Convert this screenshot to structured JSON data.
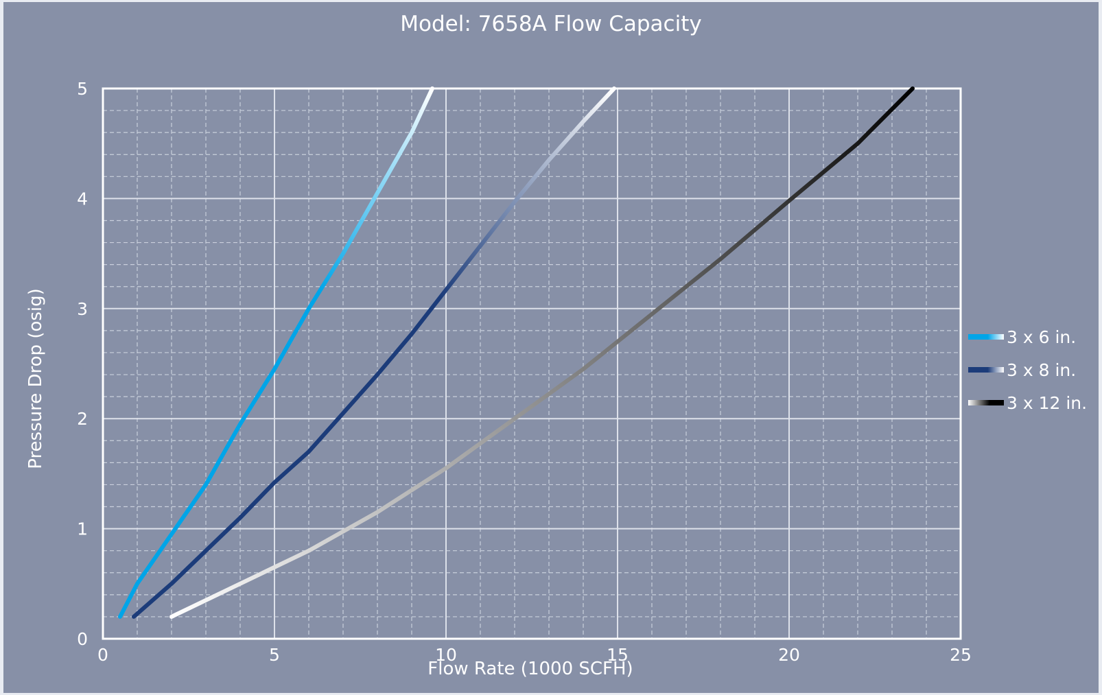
{
  "colors": {
    "background": "#8790a7",
    "frame": "#e9ecf2",
    "plot_border": "#ffffff",
    "grid_major": "#dde1ea",
    "grid_minor": "#c9cfdc"
  },
  "chart_data": {
    "type": "line",
    "title": "Model: 7658A Flow Capacity",
    "xlabel": "Flow Rate (1000 SCFH)",
    "ylabel": "Pressure Drop (osig)",
    "xlim": [
      0,
      25
    ],
    "ylim": [
      0,
      5
    ],
    "x_ticks": [
      "0",
      "5",
      "10",
      "15",
      "20",
      "25"
    ],
    "y_ticks": [
      "0",
      "1",
      "2",
      "3",
      "4",
      "5"
    ],
    "grid": "major and minor (dashed)",
    "legend_position": "right",
    "series": [
      {
        "name": "3 x 6 in.",
        "gradient": [
          "#00a5e8",
          "#ffffff"
        ],
        "points": [
          [
            0.5,
            0.2
          ],
          [
            1,
            0.5
          ],
          [
            2,
            0.95
          ],
          [
            3,
            1.4
          ],
          [
            4,
            1.95
          ],
          [
            5,
            2.45
          ],
          [
            6,
            3.0
          ],
          [
            7,
            3.5
          ],
          [
            8,
            4.05
          ],
          [
            9,
            4.6
          ],
          [
            9.6,
            5.0
          ]
        ]
      },
      {
        "name": "3 x 8 in.",
        "gradient": [
          "#1c3c7a",
          "#ffffff"
        ],
        "points": [
          [
            0.9,
            0.2
          ],
          [
            2,
            0.5
          ],
          [
            3,
            0.8
          ],
          [
            4,
            1.1
          ],
          [
            5,
            1.42
          ],
          [
            6,
            1.7
          ],
          [
            7,
            2.05
          ],
          [
            8,
            2.4
          ],
          [
            9,
            2.77
          ],
          [
            10,
            3.17
          ],
          [
            11,
            3.57
          ],
          [
            12,
            3.97
          ],
          [
            13,
            4.35
          ],
          [
            14,
            4.7
          ],
          [
            14.9,
            5.0
          ]
        ]
      },
      {
        "name": "3 x 12 in.",
        "gradient": [
          "#ffffff",
          "#000000"
        ],
        "points": [
          [
            2,
            0.2
          ],
          [
            4,
            0.5
          ],
          [
            6,
            0.8
          ],
          [
            8,
            1.15
          ],
          [
            10,
            1.55
          ],
          [
            12,
            2.0
          ],
          [
            14,
            2.45
          ],
          [
            16,
            2.95
          ],
          [
            18,
            3.45
          ],
          [
            20,
            3.98
          ],
          [
            22,
            4.5
          ],
          [
            23.6,
            5.0
          ]
        ]
      }
    ]
  }
}
